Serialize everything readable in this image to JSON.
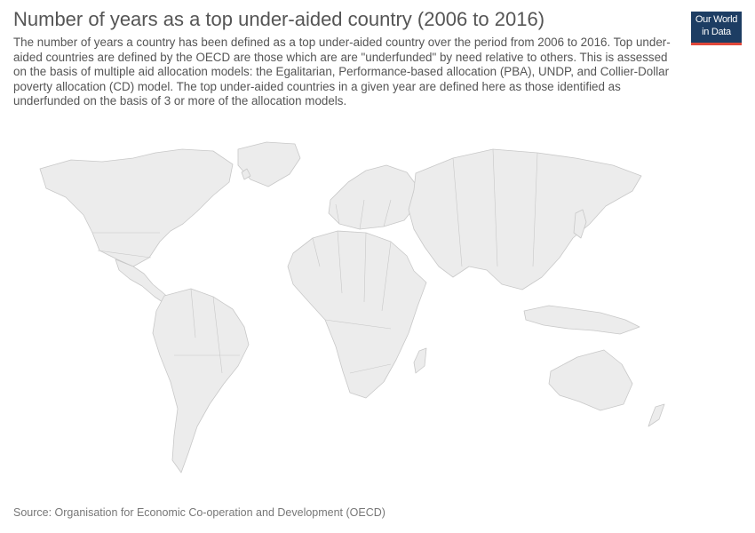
{
  "header": {
    "title": "Number of years as a top under-aided country (2006 to 2016)",
    "subtitle": "The number of years a country has been defined as a top under-aided country over the period from 2006 to 2016. Top under-aided countries are defined by the OECD are those which are are \"underfunded\" by need relative to others. This is assessed on the basis of multiple aid allocation models: the Egalitarian, Performance-based allocation (PBA), UNDP, and Collier-Dollar poverty allocation (CD) model. The top under-aided countries in a given year are defined here as those identified as underfunded on the basis of 3 or more of the allocation models."
  },
  "logo": {
    "line1": "Our World",
    "line2": "in Data"
  },
  "map": {
    "type": "world-choropleth",
    "fill_color": "#ececec",
    "stroke_color": "#c8c8c8"
  },
  "footer": {
    "source": "Source: Organisation for Economic Co-operation and Development (OECD)"
  }
}
